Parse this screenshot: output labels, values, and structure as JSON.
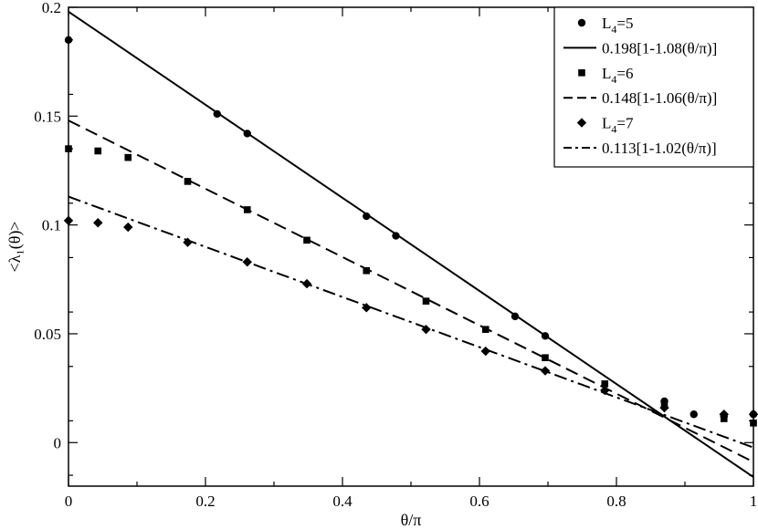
{
  "chart_data": {
    "type": "scatter",
    "xlabel": "θ/π",
    "ylabel": "<λ₁(θ)>",
    "xlim": [
      0,
      1
    ],
    "ylim": [
      -0.02,
      0.2
    ],
    "xticks": [
      0,
      0.2,
      0.4,
      0.6,
      0.8,
      1
    ],
    "yticks": [
      0,
      0.05,
      0.1,
      0.15,
      0.2
    ],
    "xtick_labels": [
      "0",
      "0.2",
      "0.4",
      "0.6",
      "0.8",
      "1"
    ],
    "ytick_labels": [
      "0",
      "0.05",
      "0.1",
      "0.15",
      "0.2"
    ],
    "grid": false,
    "legend": "top-right",
    "series": [
      {
        "name": "L4=5",
        "legend_label": "L",
        "legend_sub": "4",
        "legend_rest": "=5",
        "marker": "circle",
        "x": [
          0,
          0.217,
          0.261,
          0.435,
          0.478,
          0.652,
          0.696,
          0.87,
          0.913,
          0.957,
          1.0
        ],
        "y": [
          0.185,
          0.151,
          0.142,
          0.104,
          0.095,
          0.058,
          0.049,
          0.019,
          0.013,
          0.012,
          0.013
        ]
      },
      {
        "name": "0.198[1-1.08(θ/π)]",
        "legend_label": "0.198[1-1.08(θ/π)]",
        "style": "solid",
        "fit": {
          "a": 0.198,
          "b": 1.08
        }
      },
      {
        "name": "L4=6",
        "legend_label": "L",
        "legend_sub": "4",
        "legend_rest": "=6",
        "marker": "square",
        "x": [
          0,
          0.043,
          0.087,
          0.174,
          0.261,
          0.348,
          0.435,
          0.522,
          0.609,
          0.696,
          0.783,
          0.87,
          0.957,
          1.0
        ],
        "y": [
          0.135,
          0.134,
          0.131,
          0.12,
          0.107,
          0.093,
          0.079,
          0.065,
          0.052,
          0.039,
          0.027,
          0.017,
          0.011,
          0.009
        ]
      },
      {
        "name": "0.148[1-1.06(θ/π)]",
        "legend_label": "0.148[1-1.06(θ/π)]",
        "style": "dashed",
        "fit": {
          "a": 0.148,
          "b": 1.06
        }
      },
      {
        "name": "L4=7",
        "legend_label": "L",
        "legend_sub": "4",
        "legend_rest": "=7",
        "marker": "diamond",
        "x": [
          0,
          0.043,
          0.087,
          0.174,
          0.261,
          0.348,
          0.435,
          0.522,
          0.609,
          0.696,
          0.783,
          0.87,
          0.957,
          1.0
        ],
        "y": [
          0.102,
          0.101,
          0.099,
          0.092,
          0.083,
          0.073,
          0.062,
          0.052,
          0.042,
          0.033,
          0.024,
          0.016,
          0.013,
          0.013
        ]
      },
      {
        "name": "0.113[1-1.02(θ/π)]",
        "legend_label": "0.113[1-1.02(θ/π)]",
        "style": "dashdot",
        "fit": {
          "a": 0.113,
          "b": 1.02
        }
      }
    ]
  }
}
